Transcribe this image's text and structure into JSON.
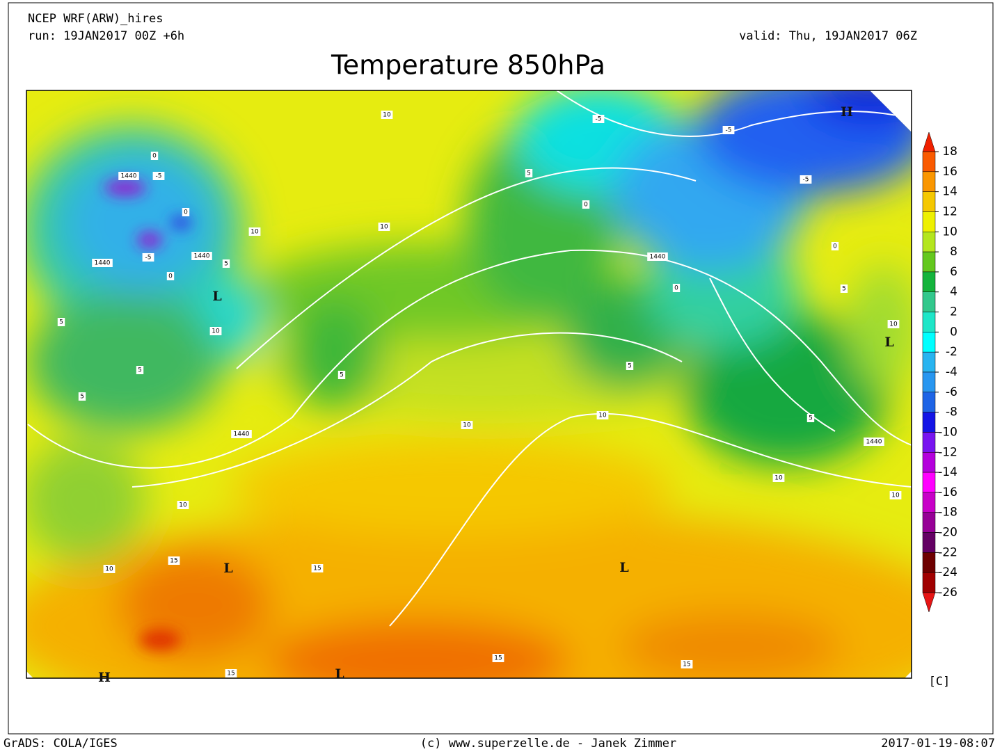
{
  "header": {
    "model": "NCEP WRF(ARW)_hires",
    "run": "run: 19JAN2017 00Z +6h",
    "valid": "valid: Thu, 19JAN2017 06Z",
    "title": "Temperature 850hPa"
  },
  "colorbar": {
    "ticks": [
      18,
      16,
      14,
      12,
      10,
      8,
      6,
      4,
      2,
      0,
      -2,
      -4,
      -6,
      -8,
      -10,
      -12,
      -14,
      -16,
      -18,
      -20,
      -22,
      -24,
      -26
    ],
    "colors": [
      "#f02000",
      "#fa5a00",
      "#fa9600",
      "#f5c800",
      "#eef000",
      "#b4e61e",
      "#64c81e",
      "#14b43c",
      "#32c88c",
      "#1ee6c8",
      "#00ffff",
      "#28b4f0",
      "#2896f0",
      "#1e64e6",
      "#1414e6",
      "#7814f0",
      "#b400dc",
      "#ff00ff",
      "#c800c8",
      "#960096",
      "#640064",
      "#6e0000",
      "#a00000",
      "#e61414"
    ],
    "unit": "[C]"
  },
  "map_labels": [
    "H",
    "H",
    "L",
    "L",
    "L",
    "L",
    "L",
    "1440",
    "1440",
    "1440",
    "1440",
    "1440",
    "1440",
    "10",
    "10",
    "10",
    "10",
    "10",
    "10",
    "10",
    "10",
    "10",
    "10",
    "10",
    "5",
    "5",
    "5",
    "5",
    "5",
    "5",
    "5",
    "5",
    "5",
    "0",
    "0",
    "0",
    "0",
    "0",
    "0",
    "-5",
    "-5",
    "-5",
    "-5",
    "-5",
    "15",
    "15",
    "15",
    "15",
    "15"
  ],
  "footer": {
    "left": "GrADS: COLA/IGES",
    "center": "(c) www.superzelle.de - Janek Zimmer",
    "right": "2017-01-19-08:07"
  }
}
